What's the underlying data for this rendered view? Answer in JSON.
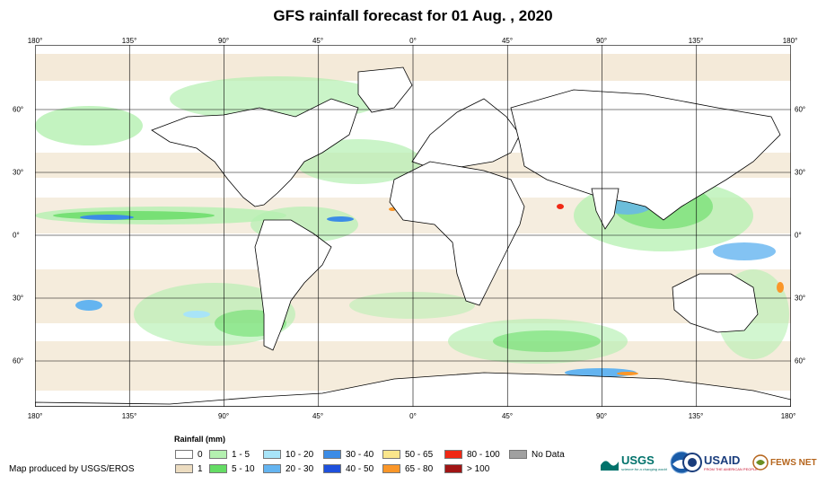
{
  "title": "GFS rainfall forecast for 01 Aug. , 2020",
  "ticks": {
    "longitude": [
      "180°",
      "135°",
      "90°",
      "45°",
      "0°",
      "45°",
      "90°",
      "135°",
      "180°"
    ],
    "latitude": [
      "60°",
      "30°",
      "0°",
      "30°",
      "60°"
    ]
  },
  "legend": {
    "title": "Rainfall (mm)",
    "items": [
      {
        "label": "0",
        "color": "#ffffff"
      },
      {
        "label": "1",
        "color": "#ecdcc0"
      },
      {
        "label": "1 - 5",
        "color": "#b4f0b0"
      },
      {
        "label": "5 - 10",
        "color": "#64dc64"
      },
      {
        "label": "10 - 20",
        "color": "#a8e4f8"
      },
      {
        "label": "20 - 30",
        "color": "#64b4f0"
      },
      {
        "label": "30 - 40",
        "color": "#3c8ce6"
      },
      {
        "label": "40 - 50",
        "color": "#1e50dc"
      },
      {
        "label": "50 - 65",
        "color": "#fae68c"
      },
      {
        "label": "65 - 80",
        "color": "#fa9628"
      },
      {
        "label": "80 - 100",
        "color": "#f02814"
      },
      {
        "label": "> 100",
        "color": "#a01414"
      },
      {
        "label": "No Data",
        "color": "#a0a0a0"
      }
    ]
  },
  "producer": "Map produced by USGS/EROS",
  "logos": {
    "usgs": "USGS",
    "usgs_tagline": "science for a changing world",
    "usaid": "USAID",
    "usaid_tagline": "FROM THE AMERICAN PEOPLE",
    "fews": "FEWS NET"
  }
}
